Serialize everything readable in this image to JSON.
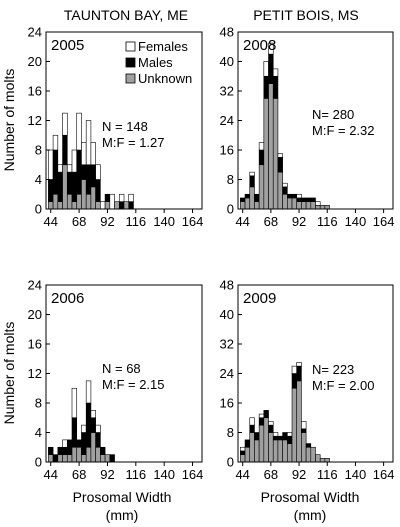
{
  "figure": {
    "col_titles": [
      "TAUNTON BAY, ME",
      "PETIT BOIS, MS"
    ],
    "ylabel": "Number of molts",
    "xlabel_line1": "Prosomal Width",
    "xlabel_line2": "(mm)",
    "legend": [
      "Females",
      "Males",
      "Unknown"
    ]
  },
  "chart_data": [
    {
      "type": "bar",
      "stacked": true,
      "location": "TAUNTON BAY, ME",
      "year_label": "2005",
      "stats_n": "N = 148",
      "stats_mf": "M:F = 1.27",
      "bin_start": 44,
      "bin_width": 4,
      "xticks": [
        44,
        68,
        92,
        116,
        140,
        164
      ],
      "xtick_labels": [
        "44",
        "68",
        "92",
        "116",
        "140",
        "164"
      ],
      "ylim": [
        0,
        24
      ],
      "yticks": [
        0,
        4,
        8,
        12,
        16,
        20,
        24
      ],
      "ytick_labels": [
        "0",
        "4",
        "8",
        "12",
        "16",
        "20",
        "24"
      ],
      "legend": "top-left",
      "series": [
        {
          "name": "Unknown",
          "color": "#a0a0a0",
          "values": [
            1,
            2,
            1,
            6,
            2,
            1,
            2,
            4,
            2,
            3,
            1,
            0,
            1,
            0,
            1,
            0,
            1,
            0,
            0,
            0,
            0,
            0,
            0,
            0,
            0,
            0,
            0,
            0,
            0,
            0,
            0,
            0,
            0
          ]
        },
        {
          "name": "Males",
          "color": "#000000",
          "values": [
            3,
            6,
            4,
            4,
            3,
            4,
            6,
            2,
            4,
            3,
            3,
            0,
            1,
            0,
            0,
            1,
            0,
            1,
            0,
            0,
            0,
            0,
            0,
            0,
            0,
            0,
            0,
            0,
            0,
            0,
            0,
            0,
            0
          ]
        },
        {
          "name": "Females",
          "color": "#ffffff",
          "values": [
            4,
            2,
            1,
            3,
            1,
            3,
            5,
            3,
            6,
            3,
            2,
            1,
            0,
            2,
            0,
            1,
            0,
            1,
            0,
            0,
            0,
            0,
            0,
            0,
            0,
            0,
            0,
            0,
            0,
            0,
            0,
            0,
            0
          ]
        }
      ]
    },
    {
      "type": "bar",
      "stacked": true,
      "location": "PETIT BOIS, MS",
      "year_label": "2008",
      "stats_n": "N= 280",
      "stats_mf": "M:F = 2.32",
      "bin_start": 44,
      "bin_width": 4,
      "xticks": [
        44,
        68,
        92,
        116,
        140,
        164
      ],
      "xtick_labels": [
        "44",
        "68",
        "92",
        "116",
        "140",
        "164"
      ],
      "ylim": [
        0,
        48
      ],
      "yticks": [
        0,
        8,
        16,
        24,
        32,
        40,
        48
      ],
      "ytick_labels": [
        "0",
        "8",
        "16",
        "24",
        "32",
        "40",
        "48"
      ],
      "series": [
        {
          "name": "Unknown",
          "color": "#a0a0a0",
          "values": [
            2,
            3,
            6,
            2,
            12,
            30,
            34,
            30,
            10,
            4,
            3,
            3,
            2,
            2,
            2,
            2,
            1,
            1,
            1,
            0,
            0,
            0,
            0,
            0,
            0,
            0,
            0,
            0,
            0,
            0,
            0,
            0,
            0
          ]
        },
        {
          "name": "Males",
          "color": "#000000",
          "values": [
            1,
            1,
            3,
            2,
            4,
            6,
            8,
            6,
            4,
            2,
            1,
            1,
            1,
            1,
            1,
            1,
            0,
            0,
            0,
            0,
            0,
            0,
            0,
            0,
            0,
            0,
            0,
            0,
            0,
            0,
            0,
            0,
            0
          ]
        },
        {
          "name": "Females",
          "color": "#ffffff",
          "values": [
            0,
            0,
            1,
            0,
            2,
            4,
            3,
            2,
            1,
            1,
            0,
            0,
            1,
            0,
            0,
            0,
            1,
            0,
            0,
            0,
            0,
            0,
            0,
            0,
            0,
            0,
            0,
            0,
            0,
            0,
            0,
            0,
            0
          ]
        }
      ]
    },
    {
      "type": "bar",
      "stacked": true,
      "location": "TAUNTON BAY, ME",
      "year_label": "2006",
      "stats_n": "N = 68",
      "stats_mf": "M:F = 2.15",
      "bin_start": 44,
      "bin_width": 4,
      "xticks": [
        44,
        68,
        92,
        116,
        140,
        164
      ],
      "xtick_labels": [
        "44",
        "68",
        "92",
        "116",
        "140",
        "164"
      ],
      "ylim": [
        0,
        24
      ],
      "yticks": [
        0,
        4,
        8,
        12,
        16,
        20,
        24
      ],
      "ytick_labels": [
        "0",
        "4",
        "8",
        "12",
        "16",
        "20",
        "24"
      ],
      "series": [
        {
          "name": "Unknown",
          "color": "#a0a0a0",
          "values": [
            1,
            0,
            1,
            1,
            1,
            2,
            2,
            1,
            2,
            4,
            2,
            1,
            1,
            0,
            0,
            0,
            0,
            0,
            0,
            0,
            0,
            0,
            0,
            0,
            0,
            0,
            0,
            0,
            0,
            0,
            0,
            0,
            0
          ]
        },
        {
          "name": "Males",
          "color": "#000000",
          "values": [
            1,
            1,
            1,
            1,
            2,
            4,
            1,
            3,
            6,
            2,
            2,
            1,
            0,
            1,
            0,
            0,
            0,
            0,
            0,
            0,
            0,
            0,
            0,
            0,
            0,
            0,
            0,
            0,
            0,
            0,
            0,
            0,
            0
          ]
        },
        {
          "name": "Females",
          "color": "#ffffff",
          "values": [
            0,
            0,
            0,
            1,
            0,
            4,
            0,
            1,
            3,
            1,
            1,
            0,
            0,
            0,
            0,
            0,
            0,
            0,
            0,
            0,
            0,
            0,
            0,
            0,
            0,
            0,
            0,
            0,
            0,
            0,
            0,
            0,
            0
          ]
        }
      ]
    },
    {
      "type": "bar",
      "stacked": true,
      "location": "PETIT BOIS, MS",
      "year_label": "2009",
      "stats_n": "N= 223",
      "stats_mf": "M:F = 2.00",
      "bin_start": 44,
      "bin_width": 4,
      "xticks": [
        44,
        68,
        92,
        116,
        140,
        164
      ],
      "xtick_labels": [
        "44",
        "68",
        "92",
        "116",
        "140",
        "164"
      ],
      "ylim": [
        0,
        48
      ],
      "yticks": [
        0,
        8,
        16,
        24,
        32,
        40,
        48
      ],
      "ytick_labels": [
        "0",
        "8",
        "16",
        "24",
        "32",
        "40",
        "48"
      ],
      "series": [
        {
          "name": "Unknown",
          "color": "#a0a0a0",
          "values": [
            2,
            4,
            8,
            6,
            10,
            12,
            8,
            6,
            6,
            6,
            5,
            20,
            22,
            8,
            4,
            4,
            2,
            1,
            1,
            0,
            0,
            0,
            0,
            0,
            0,
            0,
            0,
            0,
            0,
            0,
            0,
            0,
            0
          ]
        },
        {
          "name": "Males",
          "color": "#000000",
          "values": [
            1,
            2,
            2,
            2,
            2,
            2,
            2,
            1,
            1,
            2,
            2,
            4,
            4,
            1,
            1,
            0,
            0,
            0,
            0,
            0,
            0,
            0,
            0,
            0,
            0,
            0,
            0,
            0,
            0,
            0,
            0,
            0,
            0
          ]
        },
        {
          "name": "Females",
          "color": "#ffffff",
          "values": [
            1,
            0,
            2,
            0,
            1,
            0,
            1,
            1,
            0,
            0,
            1,
            2,
            1,
            2,
            0,
            0,
            0,
            0,
            0,
            0,
            0,
            0,
            0,
            0,
            0,
            0,
            0,
            0,
            0,
            0,
            0,
            0,
            0
          ]
        }
      ]
    }
  ]
}
